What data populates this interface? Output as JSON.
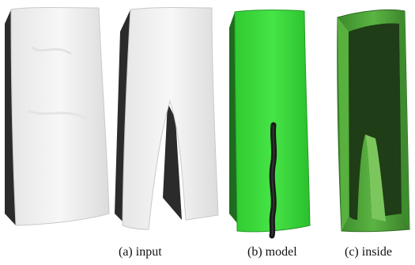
{
  "captions": {
    "a": "(a) input",
    "b": "(b) model",
    "c": "(c) inside"
  },
  "colors": {
    "input_surface": "#f1f1f1",
    "input_shadow": "#2b2b2b",
    "model_surface": "#36d83a",
    "model_crack": "#151915",
    "inside_wall": "#4fa33a",
    "inside_dark": "#1f3d16"
  }
}
